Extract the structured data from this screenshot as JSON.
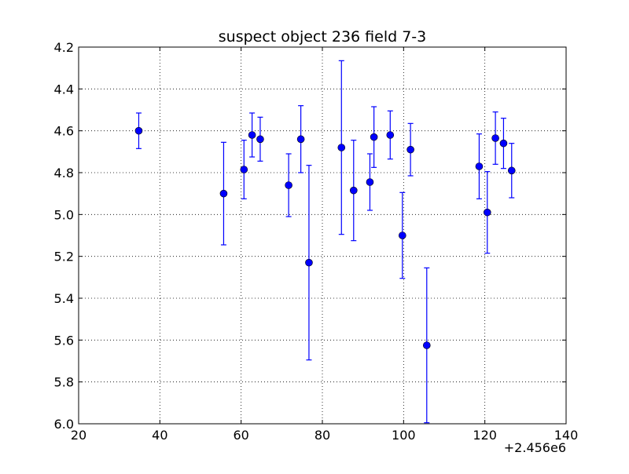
{
  "chart_data": {
    "type": "scatter",
    "title": "suspect object 236 field 7-3",
    "xlabel": "",
    "ylabel": "",
    "x_offset_label": "+2.456e6",
    "xlim": [
      20,
      140
    ],
    "ylim": [
      6.0,
      4.2
    ],
    "y_inverted": true,
    "grid": true,
    "x_ticks": [
      20,
      40,
      60,
      80,
      100,
      120,
      140
    ],
    "x_tick_labels": [
      "20",
      "40",
      "60",
      "80",
      "100",
      "120",
      "140"
    ],
    "y_ticks": [
      4.2,
      4.4,
      4.6,
      4.8,
      5.0,
      5.2,
      5.4,
      5.6,
      5.8,
      6.0
    ],
    "y_tick_labels": [
      "4.2",
      "4.4",
      "4.6",
      "4.8",
      "5.0",
      "5.2",
      "5.4",
      "5.6",
      "5.8",
      "6.0"
    ],
    "marker_color": "#0000ff",
    "series": [
      {
        "points": [
          {
            "x": 34.8,
            "y": 4.6,
            "err": 0.085
          },
          {
            "x": 55.7,
            "y": 4.9,
            "err": 0.245
          },
          {
            "x": 60.7,
            "y": 4.785,
            "err": 0.14
          },
          {
            "x": 62.7,
            "y": 4.62,
            "err": 0.105
          },
          {
            "x": 64.7,
            "y": 4.64,
            "err": 0.105
          },
          {
            "x": 71.7,
            "y": 4.86,
            "err": 0.15
          },
          {
            "x": 74.7,
            "y": 4.64,
            "err": 0.16
          },
          {
            "x": 76.7,
            "y": 5.23,
            "err": 0.465
          },
          {
            "x": 84.7,
            "y": 4.68,
            "err": 0.415
          },
          {
            "x": 87.7,
            "y": 4.885,
            "err": 0.24
          },
          {
            "x": 91.7,
            "y": 4.845,
            "err": 0.135
          },
          {
            "x": 92.7,
            "y": 4.63,
            "err": 0.145
          },
          {
            "x": 96.7,
            "y": 4.62,
            "err": 0.115
          },
          {
            "x": 99.7,
            "y": 5.1,
            "err": 0.205
          },
          {
            "x": 101.7,
            "y": 4.69,
            "err": 0.125
          },
          {
            "x": 105.7,
            "y": 5.625,
            "err": 0.37
          },
          {
            "x": 118.6,
            "y": 4.77,
            "err": 0.155
          },
          {
            "x": 120.6,
            "y": 4.99,
            "err": 0.195
          },
          {
            "x": 122.6,
            "y": 4.635,
            "err": 0.125
          },
          {
            "x": 124.6,
            "y": 4.66,
            "err": 0.12
          },
          {
            "x": 126.6,
            "y": 4.79,
            "err": 0.13
          }
        ]
      }
    ]
  }
}
